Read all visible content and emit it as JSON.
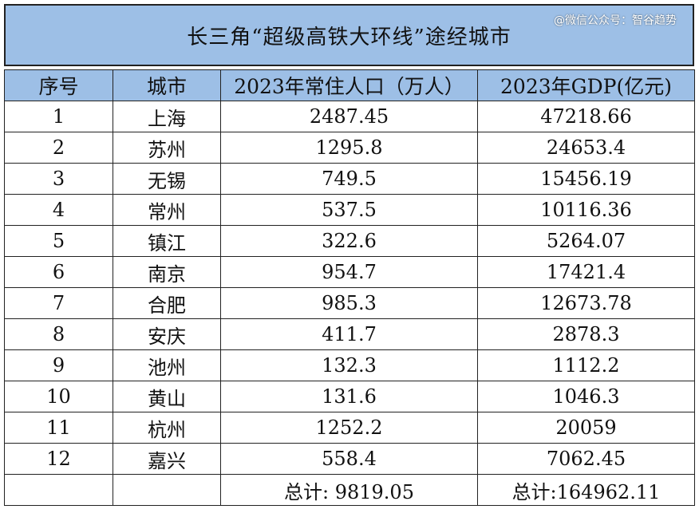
{
  "title": "长三角“超级高铁大环线”途经城市",
  "watermark": "@微信公众号：智谷趋势",
  "headers": [
    "序号",
    "城市",
    "2023年常住人口（万人）",
    "2023年GDP(亿元)"
  ],
  "rows": [
    [
      "1",
      "上海",
      "2487.45",
      "47218.66"
    ],
    [
      "2",
      "苏州",
      "1295.8",
      "24653.4"
    ],
    [
      "3",
      "无锡",
      "749.5",
      "15456.19"
    ],
    [
      "4",
      "常州",
      "537.5",
      "10116.36"
    ],
    [
      "5",
      "镇江",
      "322.6",
      "5264.07"
    ],
    [
      "6",
      "南京",
      "954.7",
      "17421.4"
    ],
    [
      "7",
      "合肥",
      "985.3",
      "12673.78"
    ],
    [
      "8",
      "安庆",
      "411.7",
      "2878.3"
    ],
    [
      "9",
      "池州",
      "132.3",
      "1112.2"
    ],
    [
      "10",
      "黄山",
      "131.6",
      "1046.3"
    ],
    [
      "11",
      "杭州",
      "1252.2",
      "20059"
    ],
    [
      "12",
      "嘉兴",
      "558.4",
      "7062.45"
    ]
  ],
  "totals": {
    "population": "总计: 9819.05",
    "gdp": "总计:164962.11"
  },
  "colors": {
    "header_bg": "#9dbfe6",
    "border": "#222222"
  }
}
